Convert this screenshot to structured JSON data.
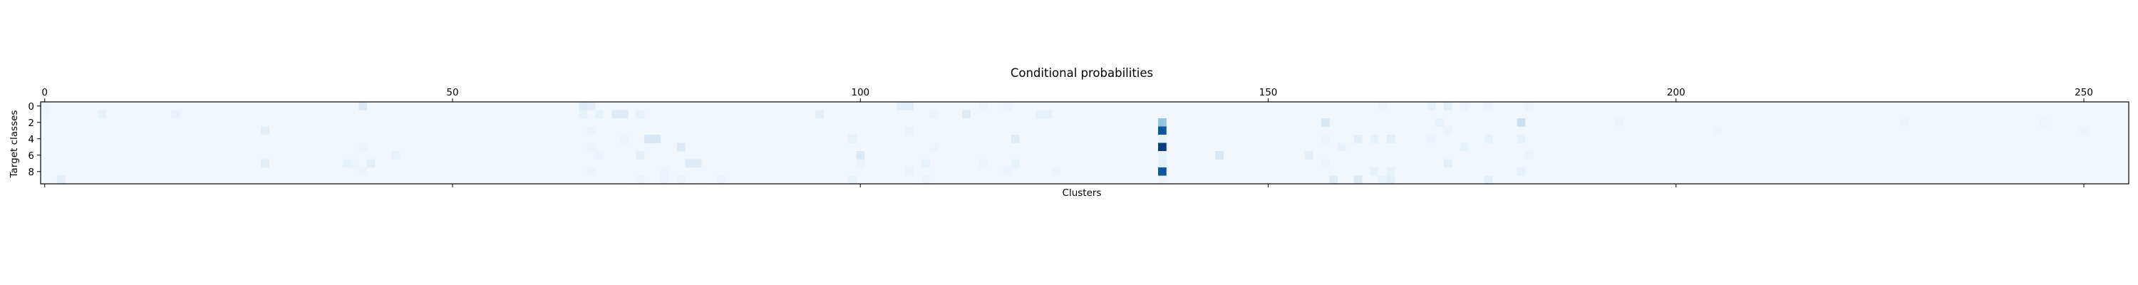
{
  "chart_data": {
    "type": "heatmap",
    "title": "Conditional probabilities",
    "xlabel": "Clusters",
    "ylabel": "Target classes",
    "x_range": [
      0,
      255
    ],
    "y_range": [
      0,
      9
    ],
    "n_cols": 256,
    "n_rows": 10,
    "x_ticks": [
      0,
      50,
      100,
      150,
      200,
      250
    ],
    "y_ticks": [
      0,
      2,
      4,
      6,
      8
    ],
    "colormap": "Blues",
    "value_range": [
      0,
      1
    ],
    "grid": false,
    "background_value": 0.03,
    "cells": [
      {
        "col": 0,
        "row": 0,
        "value": 0.06
      },
      {
        "col": 0,
        "row": 1,
        "value": 0.05
      },
      {
        "col": 2,
        "row": 9,
        "value": 0.1
      },
      {
        "col": 7,
        "row": 1,
        "value": 0.08
      },
      {
        "col": 16,
        "row": 1,
        "value": 0.07
      },
      {
        "col": 27,
        "row": 3,
        "value": 0.1
      },
      {
        "col": 27,
        "row": 7,
        "value": 0.1
      },
      {
        "col": 37,
        "row": 7,
        "value": 0.08
      },
      {
        "col": 38,
        "row": 7,
        "value": 0.06
      },
      {
        "col": 39,
        "row": 0,
        "value": 0.14
      },
      {
        "col": 39,
        "row": 5,
        "value": 0.06
      },
      {
        "col": 39,
        "row": 8,
        "value": 0.06
      },
      {
        "col": 40,
        "row": 7,
        "value": 0.1
      },
      {
        "col": 43,
        "row": 6,
        "value": 0.08
      },
      {
        "col": 66,
        "row": 1,
        "value": 0.08
      },
      {
        "col": 66,
        "row": 0,
        "value": 0.12
      },
      {
        "col": 67,
        "row": 0,
        "value": 0.1
      },
      {
        "col": 67,
        "row": 3,
        "value": 0.06
      },
      {
        "col": 67,
        "row": 5,
        "value": 0.06
      },
      {
        "col": 67,
        "row": 8,
        "value": 0.06
      },
      {
        "col": 68,
        "row": 1,
        "value": 0.08
      },
      {
        "col": 68,
        "row": 6,
        "value": 0.06
      },
      {
        "col": 70,
        "row": 1,
        "value": 0.12
      },
      {
        "col": 71,
        "row": 1,
        "value": 0.12
      },
      {
        "col": 71,
        "row": 4,
        "value": 0.06
      },
      {
        "col": 73,
        "row": 1,
        "value": 0.08
      },
      {
        "col": 73,
        "row": 6,
        "value": 0.1
      },
      {
        "col": 73,
        "row": 9,
        "value": 0.06
      },
      {
        "col": 74,
        "row": 4,
        "value": 0.16
      },
      {
        "col": 75,
        "row": 4,
        "value": 0.16
      },
      {
        "col": 76,
        "row": 8,
        "value": 0.06
      },
      {
        "col": 76,
        "row": 9,
        "value": 0.06
      },
      {
        "col": 78,
        "row": 5,
        "value": 0.14
      },
      {
        "col": 78,
        "row": 9,
        "value": 0.06
      },
      {
        "col": 79,
        "row": 7,
        "value": 0.12
      },
      {
        "col": 80,
        "row": 7,
        "value": 0.12
      },
      {
        "col": 83,
        "row": 9,
        "value": 0.06
      },
      {
        "col": 95,
        "row": 1,
        "value": 0.1
      },
      {
        "col": 99,
        "row": 4,
        "value": 0.08
      },
      {
        "col": 99,
        "row": 9,
        "value": 0.08
      },
      {
        "col": 100,
        "row": 6,
        "value": 0.14
      },
      {
        "col": 100,
        "row": 7,
        "value": 0.06
      },
      {
        "col": 105,
        "row": 0,
        "value": 0.1
      },
      {
        "col": 106,
        "row": 0,
        "value": 0.1
      },
      {
        "col": 106,
        "row": 3,
        "value": 0.06
      },
      {
        "col": 106,
        "row": 8,
        "value": 0.06
      },
      {
        "col": 108,
        "row": 7,
        "value": 0.08
      },
      {
        "col": 108,
        "row": 9,
        "value": 0.06
      },
      {
        "col": 109,
        "row": 1,
        "value": 0.06
      },
      {
        "col": 109,
        "row": 5,
        "value": 0.06
      },
      {
        "col": 113,
        "row": 1,
        "value": 0.12
      },
      {
        "col": 115,
        "row": 0,
        "value": 0.06
      },
      {
        "col": 115,
        "row": 7,
        "value": 0.06
      },
      {
        "col": 118,
        "row": 0,
        "value": 0.06
      },
      {
        "col": 118,
        "row": 8,
        "value": 0.06
      },
      {
        "col": 119,
        "row": 4,
        "value": 0.12
      },
      {
        "col": 119,
        "row": 7,
        "value": 0.08
      },
      {
        "col": 122,
        "row": 1,
        "value": 0.08
      },
      {
        "col": 123,
        "row": 1,
        "value": 0.08
      },
      {
        "col": 124,
        "row": 8,
        "value": 0.06
      },
      {
        "col": 137,
        "row": 2,
        "value": 0.4
      },
      {
        "col": 137,
        "row": 3,
        "value": 0.85
      },
      {
        "col": 137,
        "row": 4,
        "value": 0.08
      },
      {
        "col": 137,
        "row": 5,
        "value": 0.95
      },
      {
        "col": 137,
        "row": 6,
        "value": 0.08
      },
      {
        "col": 137,
        "row": 7,
        "value": 0.1
      },
      {
        "col": 137,
        "row": 8,
        "value": 0.85
      },
      {
        "col": 137,
        "row": 9,
        "value": 0.06
      },
      {
        "col": 144,
        "row": 6,
        "value": 0.16
      },
      {
        "col": 155,
        "row": 6,
        "value": 0.1
      },
      {
        "col": 157,
        "row": 2,
        "value": 0.16
      },
      {
        "col": 157,
        "row": 4,
        "value": 0.06
      },
      {
        "col": 157,
        "row": 7,
        "value": 0.06
      },
      {
        "col": 158,
        "row": 9,
        "value": 0.12
      },
      {
        "col": 159,
        "row": 5,
        "value": 0.08
      },
      {
        "col": 161,
        "row": 4,
        "value": 0.1
      },
      {
        "col": 161,
        "row": 9,
        "value": 0.14
      },
      {
        "col": 163,
        "row": 4,
        "value": 0.08
      },
      {
        "col": 163,
        "row": 8,
        "value": 0.08
      },
      {
        "col": 164,
        "row": 0,
        "value": 0.06
      },
      {
        "col": 164,
        "row": 9,
        "value": 0.08
      },
      {
        "col": 165,
        "row": 4,
        "value": 0.1
      },
      {
        "col": 165,
        "row": 8,
        "value": 0.08
      },
      {
        "col": 165,
        "row": 9,
        "value": 0.1
      },
      {
        "col": 170,
        "row": 0,
        "value": 0.08
      },
      {
        "col": 170,
        "row": 4,
        "value": 0.06
      },
      {
        "col": 171,
        "row": 2,
        "value": 0.08
      },
      {
        "col": 172,
        "row": 0,
        "value": 0.1
      },
      {
        "col": 172,
        "row": 3,
        "value": 0.06
      },
      {
        "col": 172,
        "row": 7,
        "value": 0.1
      },
      {
        "col": 174,
        "row": 0,
        "value": 0.06
      },
      {
        "col": 174,
        "row": 5,
        "value": 0.08
      },
      {
        "col": 177,
        "row": 0,
        "value": 0.06
      },
      {
        "col": 177,
        "row": 4,
        "value": 0.08
      },
      {
        "col": 177,
        "row": 9,
        "value": 0.1
      },
      {
        "col": 181,
        "row": 2,
        "value": 0.22
      },
      {
        "col": 181,
        "row": 4,
        "value": 0.08
      },
      {
        "col": 181,
        "row": 8,
        "value": 0.08
      },
      {
        "col": 182,
        "row": 0,
        "value": 0.06
      },
      {
        "col": 182,
        "row": 6,
        "value": 0.06
      },
      {
        "col": 193,
        "row": 2,
        "value": 0.05
      },
      {
        "col": 205,
        "row": 3,
        "value": 0.05
      },
      {
        "col": 228,
        "row": 2,
        "value": 0.05
      },
      {
        "col": 245,
        "row": 2,
        "value": 0.05
      },
      {
        "col": 250,
        "row": 3,
        "value": 0.05
      }
    ]
  }
}
